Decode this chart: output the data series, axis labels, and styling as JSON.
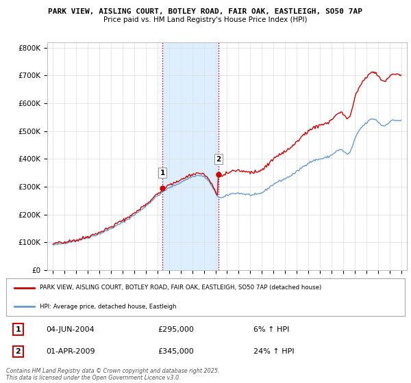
{
  "title1": "PARK VIEW, AISLING COURT, BOTLEY ROAD, FAIR OAK, EASTLEIGH, SO50 7AP",
  "title2": "Price paid vs. HM Land Registry's House Price Index (HPI)",
  "legend_label_red": "PARK VIEW, AISLING COURT, BOTLEY ROAD, FAIR OAK, EASTLEIGH, SO50 7AP (detached house)",
  "legend_label_blue": "HPI: Average price, detached house, Eastleigh",
  "sale1_date": "04-JUN-2004",
  "sale1_price": "£295,000",
  "sale1_hpi": "6% ↑ HPI",
  "sale2_date": "01-APR-2009",
  "sale2_price": "£345,000",
  "sale2_hpi": "24% ↑ HPI",
  "sale1_year": 2004.42,
  "sale2_year": 2009.25,
  "sale1_value": 295000,
  "sale2_value": 345000,
  "ylim_min": 0,
  "ylim_max": 820000,
  "xlim_min": 1994.5,
  "xlim_max": 2025.5,
  "yticks": [
    0,
    100000,
    200000,
    300000,
    400000,
    500000,
    600000,
    700000,
    800000
  ],
  "ytick_labels": [
    "£0",
    "£100K",
    "£200K",
    "£300K",
    "£400K",
    "£500K",
    "£600K",
    "£700K",
    "£800K"
  ],
  "xticks": [
    1995,
    1996,
    1997,
    1998,
    1999,
    2000,
    2001,
    2002,
    2003,
    2004,
    2005,
    2006,
    2007,
    2008,
    2009,
    2010,
    2011,
    2012,
    2013,
    2014,
    2015,
    2016,
    2017,
    2018,
    2019,
    2020,
    2021,
    2022,
    2023,
    2024,
    2025
  ],
  "red_color": "#cc0000",
  "blue_color": "#6699cc",
  "shade_color": "#ddeeff",
  "vline_color": "#cc0000",
  "background_color": "#ffffff",
  "footer_text": "Contains HM Land Registry data © Crown copyright and database right 2025.\nThis data is licensed under the Open Government Licence v3.0."
}
